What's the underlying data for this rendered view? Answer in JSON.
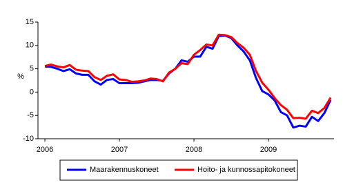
{
  "chart_data": {
    "type": "line",
    "y_label": "%",
    "categories": [
      "2006",
      null,
      null,
      null,
      null,
      null,
      null,
      null,
      null,
      null,
      null,
      null,
      "2007",
      null,
      null,
      null,
      null,
      null,
      null,
      null,
      null,
      null,
      null,
      null,
      "2008",
      null,
      null,
      null,
      null,
      null,
      null,
      null,
      null,
      null,
      null,
      null,
      "2009",
      null,
      null,
      null,
      null,
      null,
      null,
      null,
      null,
      null,
      null
    ],
    "series": [
      {
        "name": "Maarakennuskoneet",
        "color": "#0000ff",
        "values": [
          5.5,
          5.4,
          5.0,
          4.5,
          4.9,
          4.0,
          3.7,
          3.7,
          2.3,
          1.6,
          2.6,
          2.8,
          1.9,
          1.9,
          1.9,
          2.0,
          2.3,
          2.6,
          2.6,
          2.4,
          4.0,
          5.0,
          6.8,
          6.5,
          7.6,
          7.6,
          9.7,
          9.3,
          12.0,
          12.1,
          11.6,
          10.0,
          8.7,
          6.8,
          3.0,
          0.2,
          -0.5,
          -1.8,
          -4.3,
          -5.0,
          -7.6,
          -7.2,
          -7.4,
          -5.3,
          -6.2,
          -4.5,
          -1.7
        ]
      },
      {
        "name": "Hoito- ja kunnossapitokoneet",
        "color": "#ff0000",
        "values": [
          5.6,
          5.9,
          5.5,
          5.3,
          5.8,
          4.8,
          4.6,
          4.5,
          3.2,
          2.6,
          3.5,
          3.8,
          2.7,
          2.6,
          2.2,
          2.3,
          2.5,
          2.9,
          2.8,
          2.3,
          4.2,
          5.0,
          6.2,
          6.0,
          8.0,
          9.0,
          10.2,
          10.0,
          12.3,
          12.2,
          11.8,
          10.5,
          9.5,
          8.0,
          4.5,
          2.0,
          0.5,
          -1.3,
          -2.8,
          -3.8,
          -5.6,
          -5.5,
          -5.7,
          -4.0,
          -4.5,
          -3.4,
          -1.2
        ]
      }
    ],
    "ylim": [
      -10,
      15
    ],
    "yticks": [
      -10,
      -5,
      0,
      5,
      10,
      15
    ],
    "grid": false
  }
}
